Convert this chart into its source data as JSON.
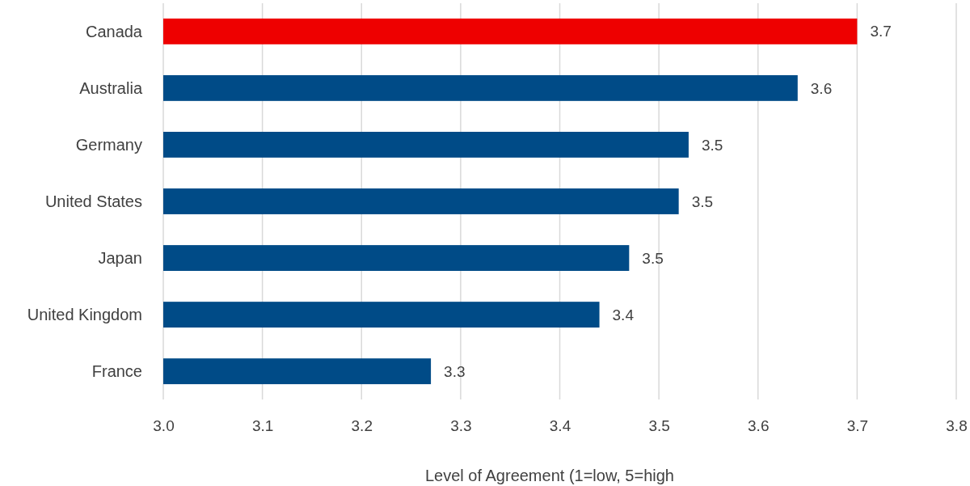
{
  "chart_data": {
    "type": "bar",
    "orientation": "horizontal",
    "xlabel": "Level of Agreement (1=low, 5=high",
    "categories": [
      "Canada",
      "Australia",
      "Germany",
      "United States",
      "Japan",
      "United Kingdom",
      "France"
    ],
    "values": [
      3.7,
      3.64,
      3.53,
      3.52,
      3.47,
      3.44,
      3.27
    ],
    "value_labels": [
      "3.7",
      "3.6",
      "3.5",
      "3.5",
      "3.5",
      "3.4",
      "3.3"
    ],
    "colors": [
      "#ee0000",
      "#004b87",
      "#004b87",
      "#004b87",
      "#004b87",
      "#004b87",
      "#004b87"
    ],
    "xlim": [
      3.0,
      3.8
    ],
    "xticks": [
      "3.0",
      "3.1",
      "3.2",
      "3.3",
      "3.4",
      "3.5",
      "3.6",
      "3.7",
      "3.8"
    ],
    "grid": "x"
  }
}
